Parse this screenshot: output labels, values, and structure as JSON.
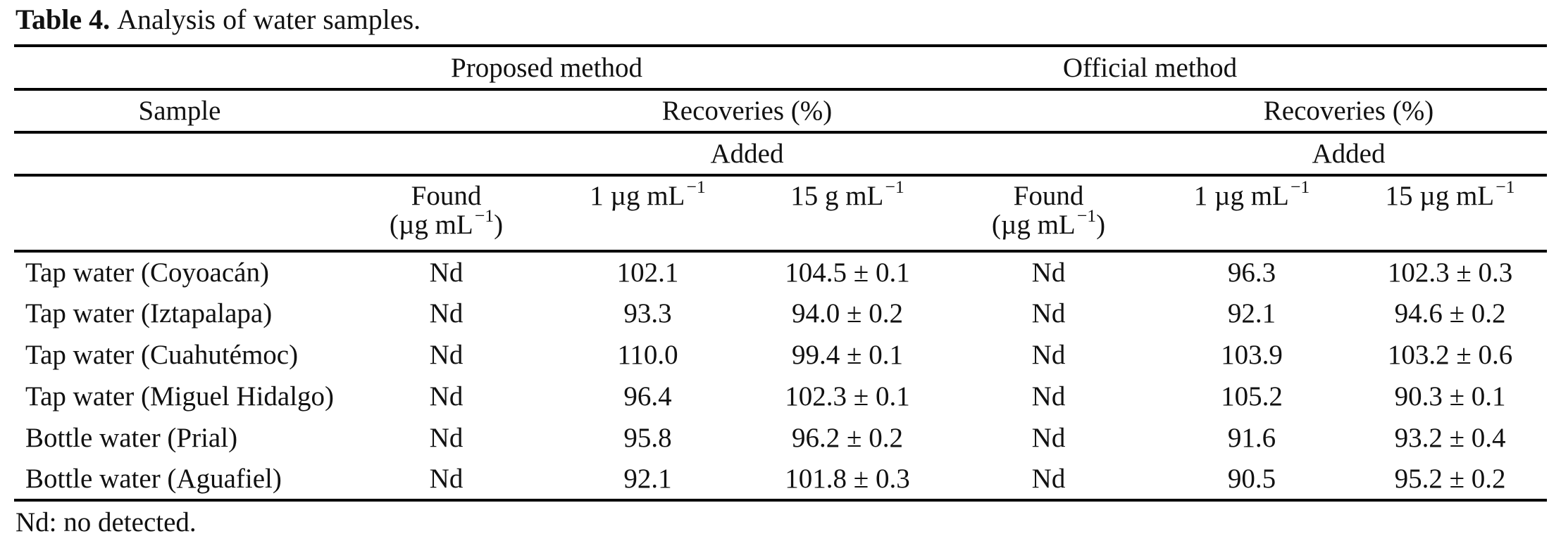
{
  "palette": {
    "ink": "#111111",
    "background": "#ffffff",
    "rule": "#000000"
  },
  "caption": {
    "label": "Table 4.",
    "text": "Analysis of water samples."
  },
  "table": {
    "group_headers": {
      "proposed": "Proposed method",
      "official": "Official method"
    },
    "sample_header": "Sample",
    "recoveries_header": "Recoveries (%)",
    "added_header": "Added",
    "unit_headers": {
      "proposed": [
        "Found\n(µg mL^{−1})",
        "1 µg mL^{−1}",
        "15 g mL^{−1}"
      ],
      "official": [
        "Found\n(µg mL^{−1})",
        "1 µg mL^{−1}",
        "15 µg mL^{−1}"
      ]
    },
    "rows": [
      {
        "sample": "Tap water (Coyoacán)",
        "values": [
          "Nd",
          "102.1",
          "104.5 ± 0.1",
          "Nd",
          "96.3",
          "102.3 ± 0.3"
        ]
      },
      {
        "sample": "Tap water (Iztapalapa)",
        "values": [
          "Nd",
          "93.3",
          "94.0 ± 0.2",
          "Nd",
          "92.1",
          "94.6 ± 0.2"
        ]
      },
      {
        "sample": "Tap water (Cuahutémoc)",
        "values": [
          "Nd",
          "110.0",
          "99.4 ± 0.1",
          "Nd",
          "103.9",
          "103.2 ± 0.6"
        ]
      },
      {
        "sample": "Tap water (Miguel Hidalgo)",
        "values": [
          "Nd",
          "96.4",
          "102.3 ± 0.1",
          "Nd",
          "105.2",
          "90.3 ± 0.1"
        ]
      },
      {
        "sample": "Bottle water (Prial)",
        "values": [
          "Nd",
          "95.8",
          "96.2 ± 0.2",
          "Nd",
          "91.6",
          "93.2 ± 0.4"
        ]
      },
      {
        "sample": "Bottle water (Aguafiel)",
        "values": [
          "Nd",
          "92.1",
          "101.8 ± 0.3",
          "Nd",
          "90.5",
          "95.2 ± 0.2"
        ]
      }
    ]
  },
  "footnote": "Nd: no detected."
}
